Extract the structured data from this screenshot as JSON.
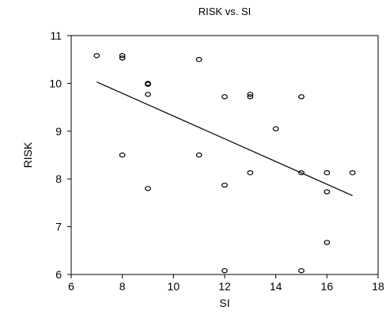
{
  "chart_data": {
    "type": "scatter",
    "title": "RISK vs. SI",
    "xlabel": "SI",
    "ylabel": "RISK",
    "xlim": [
      6,
      18
    ],
    "ylim": [
      6,
      11
    ],
    "xticks": [
      6,
      8,
      10,
      12,
      14,
      16,
      18
    ],
    "yticks": [
      6,
      7,
      8,
      9,
      10,
      11
    ],
    "grid": false,
    "legend": "none",
    "points": [
      {
        "x": 7,
        "y": 10.58
      },
      {
        "x": 8,
        "y": 10.58
      },
      {
        "x": 8,
        "y": 10.53
      },
      {
        "x": 8,
        "y": 8.5
      },
      {
        "x": 9,
        "y": 10.0
      },
      {
        "x": 9,
        "y": 9.98
      },
      {
        "x": 9,
        "y": 9.77
      },
      {
        "x": 9,
        "y": 7.8
      },
      {
        "x": 11,
        "y": 10.5
      },
      {
        "x": 11,
        "y": 8.5
      },
      {
        "x": 12,
        "y": 9.72
      },
      {
        "x": 12,
        "y": 7.87
      },
      {
        "x": 12,
        "y": 6.08
      },
      {
        "x": 13,
        "y": 9.77
      },
      {
        "x": 13,
        "y": 9.72
      },
      {
        "x": 13,
        "y": 8.13
      },
      {
        "x": 14,
        "y": 9.05
      },
      {
        "x": 15,
        "y": 9.72
      },
      {
        "x": 15,
        "y": 8.13
      },
      {
        "x": 15,
        "y": 6.08
      },
      {
        "x": 16,
        "y": 8.13
      },
      {
        "x": 16,
        "y": 7.73
      },
      {
        "x": 16,
        "y": 6.67
      },
      {
        "x": 17,
        "y": 8.13
      }
    ],
    "fit_line": {
      "x": [
        7,
        17
      ],
      "y": [
        10.03,
        7.65
      ]
    }
  }
}
